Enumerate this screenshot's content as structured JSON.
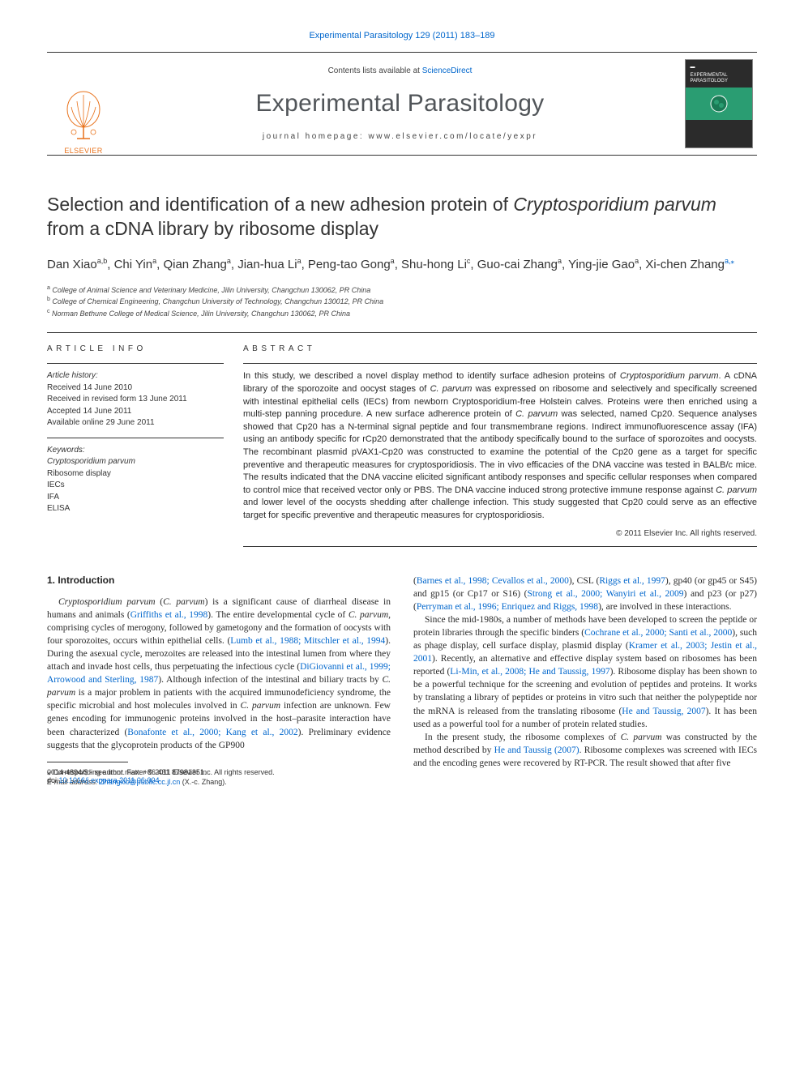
{
  "top_link": "Experimental Parasitology 129 (2011) 183–189",
  "masthead": {
    "contents_prefix": "Contents lists available at ",
    "contents_link": "ScienceDirect",
    "journal_name": "Experimental Parasitology",
    "homepage_prefix": "journal homepage: ",
    "homepage_url": "www.elsevier.com/locate/yexpr",
    "publisher": "ELSEVIER",
    "cover_title": "EXPERIMENTAL PARASITOLOGY"
  },
  "article": {
    "title_pre": "Selection and identification of a new adhesion protein of ",
    "title_italic": "Cryptosporidium parvum",
    "title_post": " from a cDNA library by ribosome display",
    "authors_html": "Dan Xiao|a,b|, Chi Yin|a|, Qian Zhang|a|, Jian-hua Li|a|, Peng-tao Gong|a|, Shu-hong Li|c|, Guo-cai Zhang|a|, Ying-jie Gao|a|, Xi-chen Zhang|a,*|"
  },
  "affiliations": [
    {
      "sup": "a",
      "text": "College of Animal Science and Veterinary Medicine, Jilin University, Changchun 130062, PR China"
    },
    {
      "sup": "b",
      "text": "College of Chemical Engineering, Changchun University of Technology, Changchun 130012, PR China"
    },
    {
      "sup": "c",
      "text": "Norman Bethune College of Medical Science, Jilin University, Changchun 130062, PR China"
    }
  ],
  "article_info": {
    "heading": "ARTICLE INFO",
    "history_label": "Article history:",
    "received": "Received 14 June 2010",
    "revised": "Received in revised form 13 June 2011",
    "accepted": "Accepted 14 June 2011",
    "online": "Available online 29 June 2011",
    "keywords_label": "Keywords:",
    "keywords": [
      "Cryptosporidium parvum",
      "Ribosome display",
      "IECs",
      "IFA",
      "ELISA"
    ]
  },
  "abstract": {
    "heading": "ABSTRACT",
    "text_pre": "In this study, we described a novel display method to identify surface adhesion proteins of ",
    "i1": "Cryptosporidium parvum",
    "text_2": ". A cDNA library of the sporozoite and oocyst stages of ",
    "i2": "C. parvum",
    "text_3": " was expressed on ribosome and selectively and specifically screened with intestinal epithelial cells (IECs) from newborn Cryptosporidium-free Holstein calves. Proteins were then enriched using a multi-step panning procedure. A new surface adherence protein of ",
    "i3": "C. parvum",
    "text_4": " was selected, named Cp20. Sequence analyses showed that Cp20 has a N-terminal signal peptide and four transmembrane regions. Indirect immunofluorescence assay (IFA) using an antibody specific for rCp20 demonstrated that the antibody specifically bound to the surface of sporozoites and oocysts. The recombinant plasmid pVAX1-Cp20 was constructed to examine the potential of the Cp20 gene as a target for specific preventive and therapeutic measures for cryptosporidiosis. The in vivo efficacies of the DNA vaccine was tested in BALB/c mice. The results indicated that the DNA vaccine elicited significant antibody responses and specific cellular responses when compared to control mice that received vector only or PBS. The DNA vaccine induced strong protective immune response against ",
    "i4": "C. parvum",
    "text_5": " and lower level of the oocysts shedding after challenge infection. This study suggested that Cp20 could serve as an effective target for specific preventive and therapeutic measures for cryptosporidiosis.",
    "copyright": "© 2011 Elsevier Inc. All rights reserved."
  },
  "intro": {
    "heading": "1. Introduction",
    "p1_a": "Cryptosporidium parvum",
    "p1_b": " (",
    "p1_c": "C. parvum",
    "p1_d": ") is a significant cause of diarrheal disease in humans and animals (",
    "p1_cite1": "Griffiths et al., 1998",
    "p1_e": "). The entire developmental cycle of ",
    "p1_f": "C. parvum",
    "p1_g": ", comprising cycles of merogony, followed by gametogony and the formation of oocysts with four sporozoites, occurs within epithelial cells. (",
    "p1_cite2": "Lumb et al., 1988; Mitschler et al., 1994",
    "p1_h": "). During the asexual cycle, merozoites are released into the intestinal lumen from where they attach and invade host cells, thus perpetuating the infectious cycle (",
    "p1_cite3": "DiGiovanni et al., 1999; Arrowood and Sterling, 1987",
    "p1_i": "). Although infection of the intestinal and biliary tracts by ",
    "p1_j": "C. parvum",
    "p1_k": " is a major problem in patients with the acquired immunodeficiency syndrome, the specific microbial and host molecules involved in ",
    "p1_l": "C. parvum",
    "p1_m": " infection are unknown. Few genes encoding for immunogenic proteins involved in the host–parasite interaction have been characterized (",
    "p1_cite4": "Bonafonte et al., 2000; Kang et al., 2002",
    "p1_n": "). Preliminary evidence suggests that the glycoprotein products of the GP900",
    "p2_a": "(",
    "p2_cite1": "Barnes et al., 1998; Cevallos et al., 2000",
    "p2_b": "), CSL (",
    "p2_cite2": "Riggs et al., 1997",
    "p2_c": "), gp40 (or gp45 or S45) and gp15 (or Cp17 or S16) (",
    "p2_cite3": "Strong et al., 2000; Wanyiri et al., 2009",
    "p2_d": ") and p23 (or p27) (",
    "p2_cite4": "Perryman et al., 1996; Enriquez and Riggs, 1998",
    "p2_e": "), are involved in these interactions.",
    "p3_a": "Since the mid-1980s, a number of methods have been developed to screen the peptide or protein libraries through the specific binders (",
    "p3_cite1": "Cochrane et al., 2000; Santi et al., 2000",
    "p3_b": "), such as phage display, cell surface display, plasmid display (",
    "p3_cite2": "Kramer et al., 2003; Jestin et al., 2001",
    "p3_c": "). Recently, an alternative and effective display system based on ribosomes has been reported (",
    "p3_cite3": "Li-Min, et al., 2008; He and Taussig, 1997",
    "p3_d": "). Ribosome display has been shown to be a powerful technique for the screening and evolution of peptides and proteins. It works by translating a library of peptides or proteins in vitro such that neither the polypeptide nor the mRNA is released from the translating ribosome (",
    "p3_cite4": "He and Taussig, 2007",
    "p3_e": "). It has been used as a powerful tool for a number of protein related studies.",
    "p4_a": "In the present study, the ribosome complexes of ",
    "p4_b": "C. parvum",
    "p4_c": " was constructed by the method described by ",
    "p4_cite1": "He and Taussig (2007)",
    "p4_d": ". Ribosome complexes was screened with IECs and the encoding genes were recovered by RT-PCR. The result showed that after five"
  },
  "footer": {
    "corr_label": "⁎ Corresponding author. Fax: +86 431 87981351.",
    "email_label": "E-mail address: ",
    "email": "Zhangxic@public.cc.jl.cn",
    "email_suffix": " (X.-c. Zhang).",
    "issn": "0014-4894/$ - see front matter © 2011 Elsevier Inc. All rights reserved.",
    "doi_prefix": "doi:",
    "doi": "10.1016/j.exppara.2011.06.004"
  },
  "colors": {
    "link": "#0066cc",
    "orange": "#e8711a",
    "text": "#2d2d2d",
    "heading_gray": "#515559",
    "cover_bg": "#2b2b2b",
    "cover_band": "#2a9d72"
  }
}
